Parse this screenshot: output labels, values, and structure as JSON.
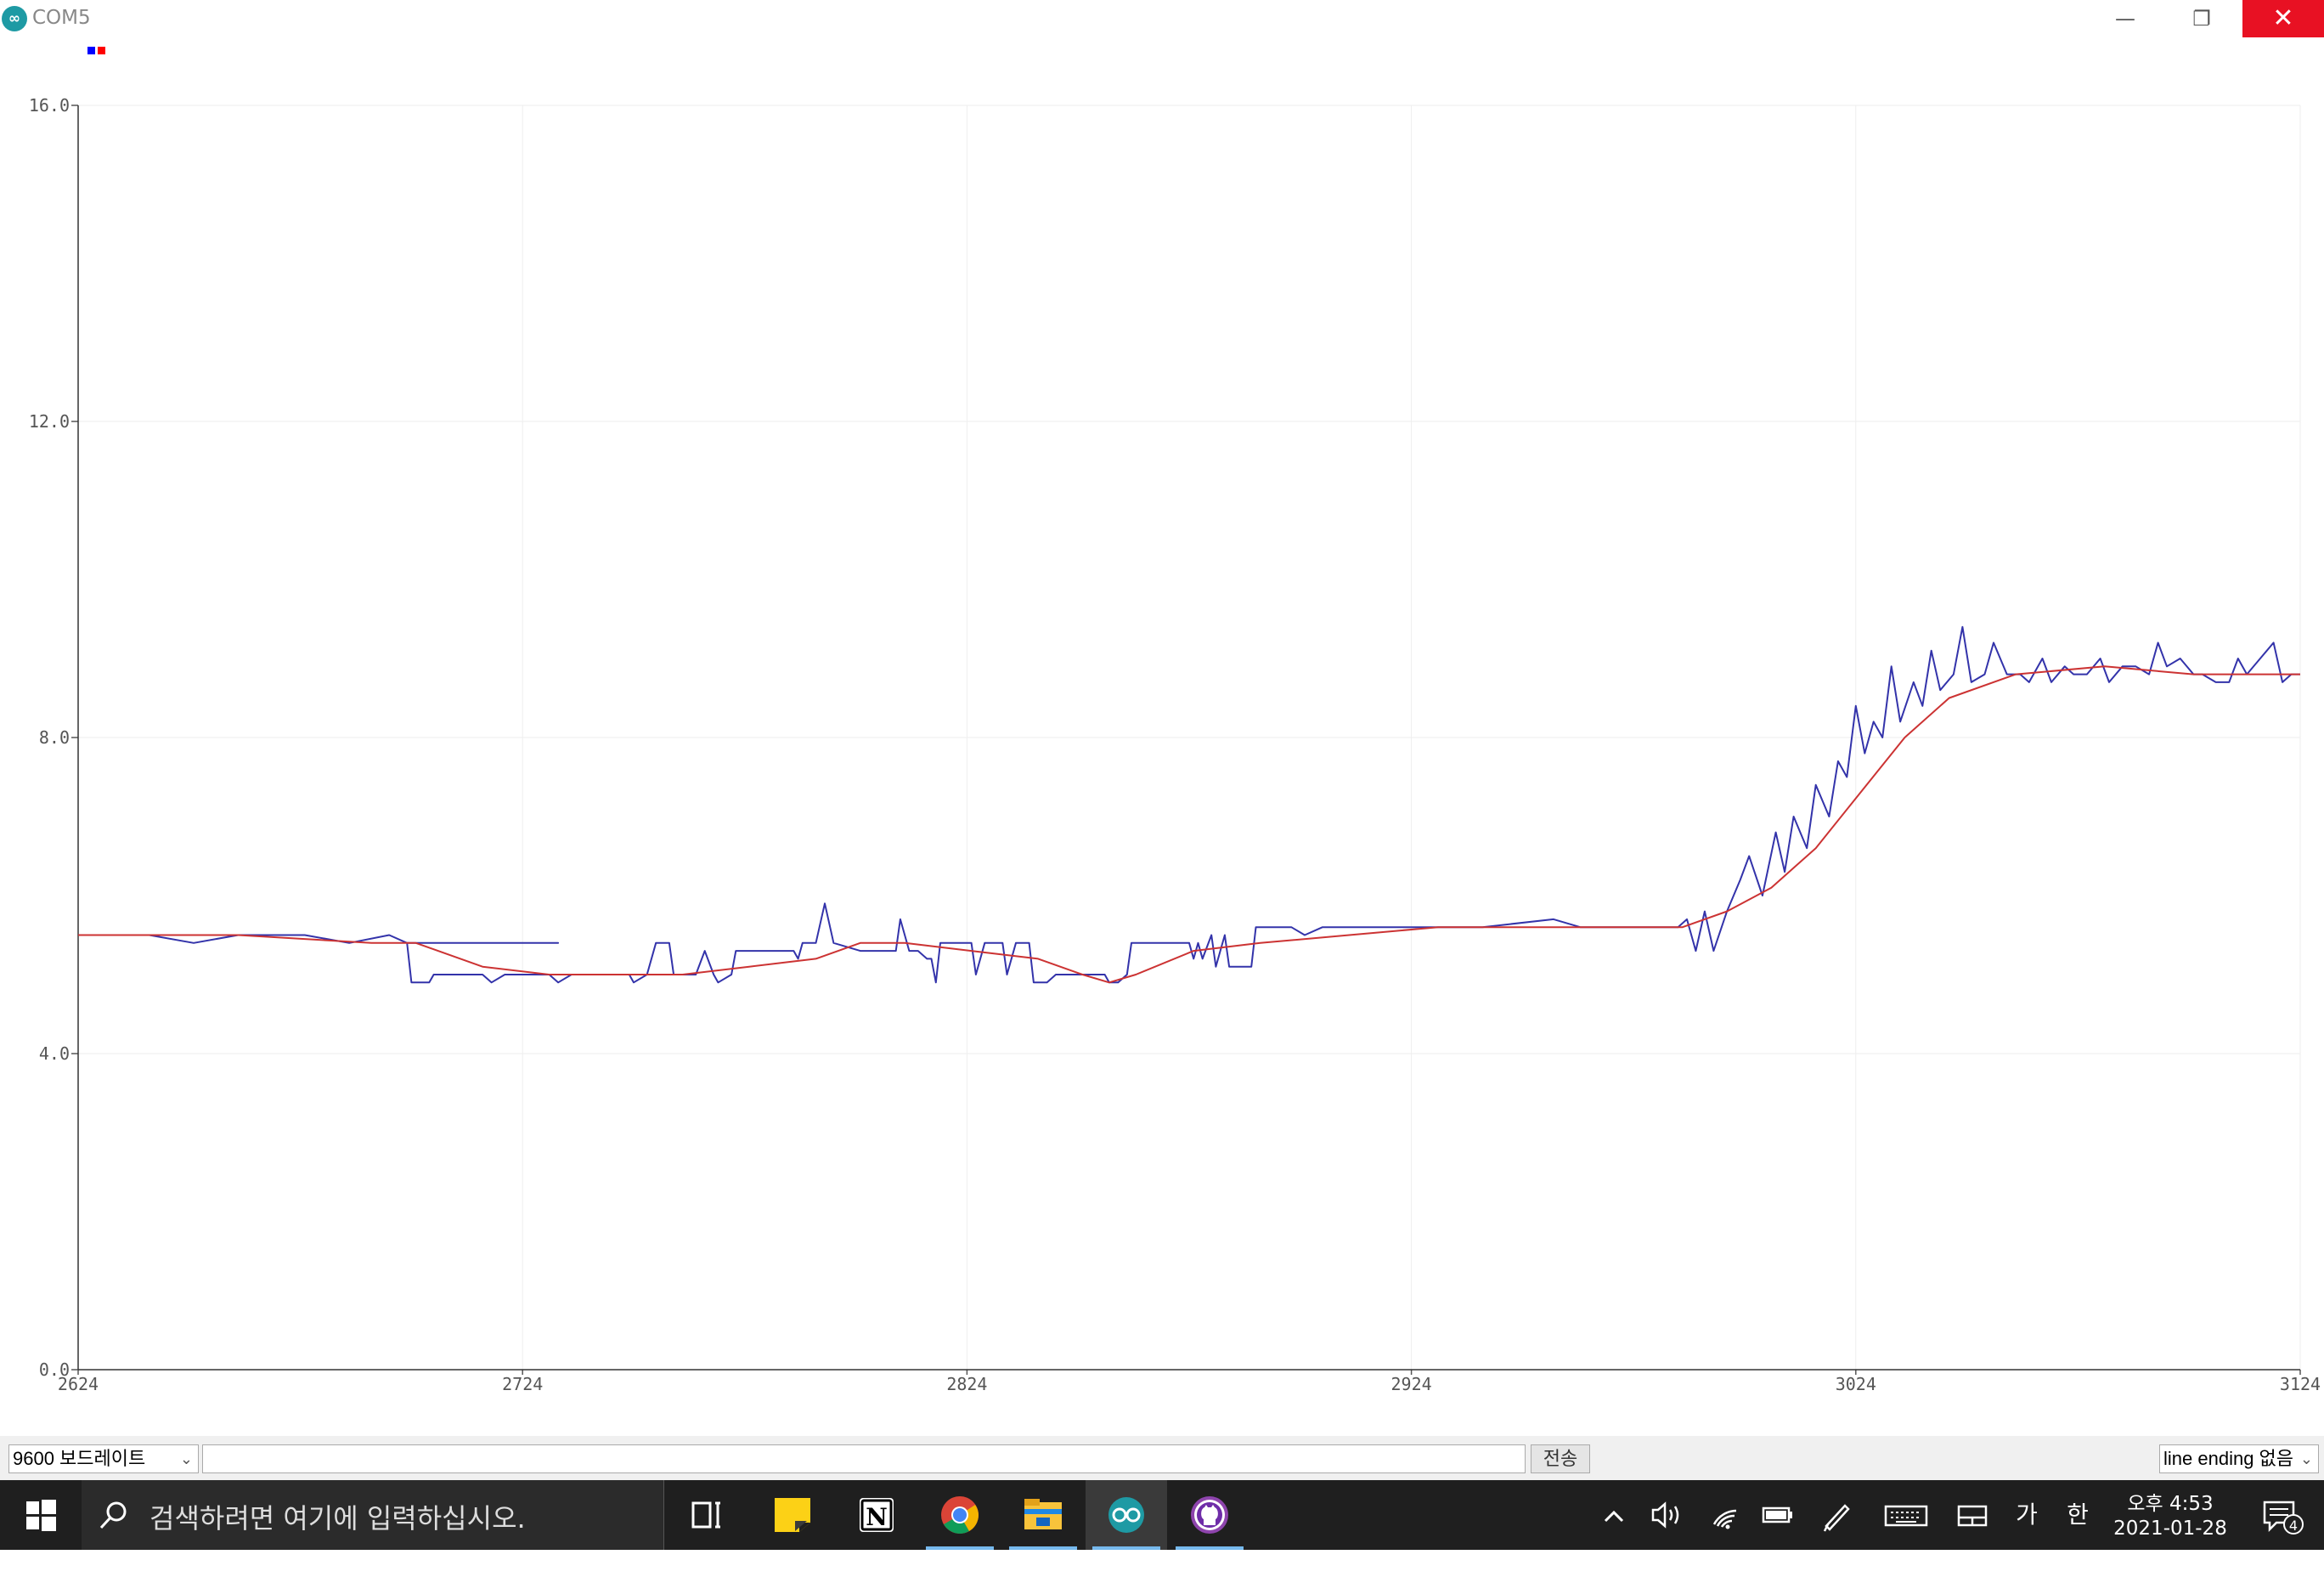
{
  "window": {
    "title": "COM5",
    "app_icon": "∞",
    "minimize_label": "—",
    "maximize_label": "❐",
    "close_label": "✕"
  },
  "legend": {
    "colors": [
      "#0000ff",
      "#ff0000"
    ]
  },
  "chart_data": {
    "type": "line",
    "ylim": [
      0,
      16
    ],
    "xlim": [
      2624,
      3124
    ],
    "y_ticks": [
      "0.0",
      "4.0",
      "8.0",
      "12.0",
      "16.0"
    ],
    "x_ticks": [
      "2624",
      "2724",
      "2824",
      "2924",
      "3024",
      "3124"
    ],
    "grid": true,
    "series": [
      {
        "color": "#3333aa",
        "points": [
          [
            2624,
            5.5
          ],
          [
            2640,
            5.5
          ],
          [
            2650,
            5.4
          ],
          [
            2660,
            5.5
          ],
          [
            2675,
            5.5
          ],
          [
            2685,
            5.4
          ],
          [
            2694,
            5.5
          ],
          [
            2698,
            5.4
          ],
          [
            2705,
            5.4
          ],
          [
            2698,
            5.4
          ],
          [
            2732,
            5.4
          ],
          [
            2698,
            5.4
          ],
          [
            2699,
            4.9
          ],
          [
            2703,
            4.9
          ],
          [
            2704,
            5.0
          ],
          [
            2715,
            5.0
          ],
          [
            2717,
            4.9
          ],
          [
            2720,
            5.0
          ],
          [
            2730,
            5.0
          ],
          [
            2732,
            4.9
          ],
          [
            2735,
            5.0
          ],
          [
            2748,
            5.0
          ],
          [
            2749,
            4.9
          ],
          [
            2752,
            5.0
          ],
          [
            2754,
            5.4
          ],
          [
            2757,
            5.4
          ],
          [
            2758,
            5.0
          ],
          [
            2763,
            5.0
          ],
          [
            2765,
            5.3
          ],
          [
            2767,
            5.0
          ],
          [
            2768,
            4.9
          ],
          [
            2771,
            5.0
          ],
          [
            2772,
            5.3
          ],
          [
            2785,
            5.3
          ],
          [
            2786,
            5.2
          ],
          [
            2787,
            5.4
          ],
          [
            2790,
            5.4
          ],
          [
            2792,
            5.9
          ],
          [
            2794,
            5.4
          ],
          [
            2800,
            5.3
          ],
          [
            2808,
            5.3
          ],
          [
            2809,
            5.7
          ],
          [
            2811,
            5.3
          ],
          [
            2813,
            5.3
          ],
          [
            2815,
            5.2
          ],
          [
            2816,
            5.2
          ],
          [
            2817,
            4.9
          ],
          [
            2818,
            5.4
          ],
          [
            2825,
            5.4
          ],
          [
            2826,
            5.0
          ],
          [
            2828,
            5.4
          ],
          [
            2832,
            5.4
          ],
          [
            2833,
            5.0
          ],
          [
            2835,
            5.4
          ],
          [
            2838,
            5.4
          ],
          [
            2839,
            4.9
          ],
          [
            2842,
            4.9
          ],
          [
            2844,
            5.0
          ],
          [
            2855,
            5.0
          ],
          [
            2856,
            4.9
          ],
          [
            2858,
            4.9
          ],
          [
            2860,
            5.0
          ],
          [
            2861,
            5.4
          ],
          [
            2868,
            5.4
          ],
          [
            2874,
            5.4
          ],
          [
            2875,
            5.2
          ],
          [
            2876,
            5.4
          ],
          [
            2877,
            5.2
          ],
          [
            2879,
            5.5
          ],
          [
            2880,
            5.1
          ],
          [
            2882,
            5.5
          ],
          [
            2883,
            5.1
          ],
          [
            2888,
            5.1
          ],
          [
            2889,
            5.6
          ],
          [
            2897,
            5.6
          ],
          [
            2900,
            5.5
          ],
          [
            2904,
            5.6
          ],
          [
            2930,
            5.6
          ],
          [
            2940,
            5.6
          ],
          [
            2956,
            5.7
          ],
          [
            2962,
            5.6
          ],
          [
            2970,
            5.6
          ],
          [
            2976,
            5.6
          ],
          [
            2984,
            5.6
          ],
          [
            2986,
            5.7
          ],
          [
            2988,
            5.3
          ],
          [
            2990,
            5.8
          ],
          [
            2992,
            5.3
          ],
          [
            2995,
            5.8
          ],
          [
            2998,
            6.2
          ],
          [
            3000,
            6.5
          ],
          [
            3003,
            6.0
          ],
          [
            3006,
            6.8
          ],
          [
            3008,
            6.3
          ],
          [
            3010,
            7.0
          ],
          [
            3013,
            6.6
          ],
          [
            3015,
            7.4
          ],
          [
            3018,
            7.0
          ],
          [
            3020,
            7.7
          ],
          [
            3022,
            7.5
          ],
          [
            3024,
            8.4
          ],
          [
            3026,
            7.8
          ],
          [
            3028,
            8.2
          ],
          [
            3030,
            8.0
          ],
          [
            3032,
            8.9
          ],
          [
            3034,
            8.2
          ],
          [
            3037,
            8.7
          ],
          [
            3039,
            8.4
          ],
          [
            3041,
            9.1
          ],
          [
            3043,
            8.6
          ],
          [
            3046,
            8.8
          ],
          [
            3048,
            9.4
          ],
          [
            3050,
            8.7
          ],
          [
            3053,
            8.8
          ],
          [
            3055,
            9.2
          ],
          [
            3058,
            8.8
          ],
          [
            3061,
            8.8
          ],
          [
            3063,
            8.7
          ],
          [
            3066,
            9.0
          ],
          [
            3068,
            8.7
          ],
          [
            3071,
            8.9
          ],
          [
            3073,
            8.8
          ],
          [
            3076,
            8.8
          ],
          [
            3079,
            9.0
          ],
          [
            3081,
            8.7
          ],
          [
            3084,
            8.9
          ],
          [
            3087,
            8.9
          ],
          [
            3090,
            8.8
          ],
          [
            3092,
            9.2
          ],
          [
            3094,
            8.9
          ],
          [
            3097,
            9.0
          ],
          [
            3100,
            8.8
          ],
          [
            3102,
            8.8
          ],
          [
            3105,
            8.7
          ],
          [
            3108,
            8.7
          ],
          [
            3110,
            9.0
          ],
          [
            3112,
            8.8
          ],
          [
            3115,
            9.0
          ],
          [
            3118,
            9.2
          ],
          [
            3120,
            8.7
          ],
          [
            3122,
            8.8
          ],
          [
            3124,
            8.8
          ]
        ]
      },
      {
        "color": "#cc3333",
        "points": [
          [
            2624,
            5.5
          ],
          [
            2660,
            5.5
          ],
          [
            2690,
            5.4
          ],
          [
            2700,
            5.4
          ],
          [
            2715,
            5.1
          ],
          [
            2730,
            5.0
          ],
          [
            2745,
            5.0
          ],
          [
            2760,
            5.0
          ],
          [
            2775,
            5.1
          ],
          [
            2790,
            5.2
          ],
          [
            2800,
            5.4
          ],
          [
            2810,
            5.4
          ],
          [
            2825,
            5.3
          ],
          [
            2840,
            5.2
          ],
          [
            2850,
            5.0
          ],
          [
            2856,
            4.9
          ],
          [
            2862,
            5.0
          ],
          [
            2875,
            5.3
          ],
          [
            2890,
            5.4
          ],
          [
            2910,
            5.5
          ],
          [
            2930,
            5.6
          ],
          [
            2960,
            5.6
          ],
          [
            2985,
            5.6
          ],
          [
            2995,
            5.8
          ],
          [
            3005,
            6.1
          ],
          [
            3015,
            6.6
          ],
          [
            3025,
            7.3
          ],
          [
            3035,
            8.0
          ],
          [
            3045,
            8.5
          ],
          [
            3060,
            8.8
          ],
          [
            3080,
            8.9
          ],
          [
            3100,
            8.8
          ],
          [
            3115,
            8.8
          ],
          [
            3124,
            8.8
          ]
        ]
      }
    ]
  },
  "bottom": {
    "baud": "9600 보드레이트",
    "input_value": "",
    "send_label": "전송",
    "line_ending": "line ending 없음",
    "chevron": "⌄"
  },
  "taskbar": {
    "search_placeholder": "검색하려면 여기에 입력하십시오.",
    "search_icon": "⚲",
    "time": "오후 4:53",
    "date": "2021-01-28",
    "ime_mode": "가",
    "ime_hangul": "한",
    "notification_count": "4",
    "apps": [
      "task-view",
      "sticky-notes",
      "notion",
      "chrome",
      "file-explorer",
      "arduino",
      "github-desktop"
    ],
    "tray_icons": [
      "chevron-up",
      "volume",
      "wifi",
      "battery",
      "pen",
      "keyboard",
      "desktop"
    ]
  }
}
